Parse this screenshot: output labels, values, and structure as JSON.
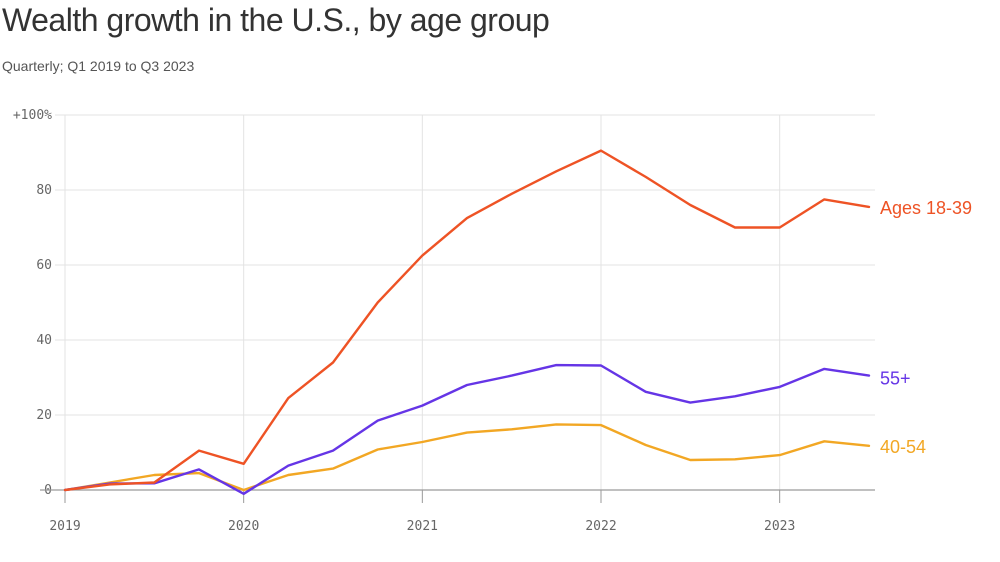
{
  "chart_data": {
    "type": "line",
    "title": "Wealth growth in the U.S., by age group",
    "subtitle": "Quarterly; Q1 2019 to Q3 2023",
    "xlabel": "",
    "ylabel": "",
    "x": [
      "2019Q1",
      "2019Q2",
      "2019Q3",
      "2019Q4",
      "2020Q1",
      "2020Q2",
      "2020Q3",
      "2020Q4",
      "2021Q1",
      "2021Q2",
      "2021Q3",
      "2021Q4",
      "2022Q1",
      "2022Q2",
      "2022Q3",
      "2022Q4",
      "2023Q1",
      "2023Q2",
      "2023Q3"
    ],
    "xticks": [
      {
        "index": 0,
        "label": "2019"
      },
      {
        "index": 4,
        "label": "2020"
      },
      {
        "index": 8,
        "label": "2021"
      },
      {
        "index": 12,
        "label": "2022"
      },
      {
        "index": 16,
        "label": "2023"
      }
    ],
    "yticks": [
      {
        "value": 0,
        "label": "0"
      },
      {
        "value": 20,
        "label": "20"
      },
      {
        "value": 40,
        "label": "40"
      },
      {
        "value": 60,
        "label": "60"
      },
      {
        "value": 80,
        "label": "80"
      },
      {
        "value": 100,
        "label": "+100%"
      }
    ],
    "ylim": [
      -2,
      100
    ],
    "grid": true,
    "series": [
      {
        "name": "Ages 18-39",
        "color": "#ee5325",
        "values": [
          0,
          1.5,
          2,
          10.5,
          7,
          24.5,
          34,
          50,
          62.5,
          72.5,
          79,
          85,
          90.5,
          83.5,
          76,
          70,
          70,
          77.5,
          75.5
        ]
      },
      {
        "name": "55+",
        "color": "#6535e6",
        "values": [
          0,
          1.7,
          1.8,
          5.5,
          -1,
          6.5,
          10.5,
          18.5,
          22.5,
          28,
          30.5,
          33.3,
          33.2,
          26.2,
          23.3,
          25,
          27.5,
          32.3,
          30.5
        ]
      },
      {
        "name": "40-54",
        "color": "#f2a724",
        "values": [
          0,
          2,
          4,
          4.5,
          0,
          4,
          5.7,
          10.8,
          12.8,
          15.3,
          16.2,
          17.5,
          17.3,
          12,
          8,
          8.2,
          9.3,
          13,
          11.8
        ]
      }
    ]
  }
}
